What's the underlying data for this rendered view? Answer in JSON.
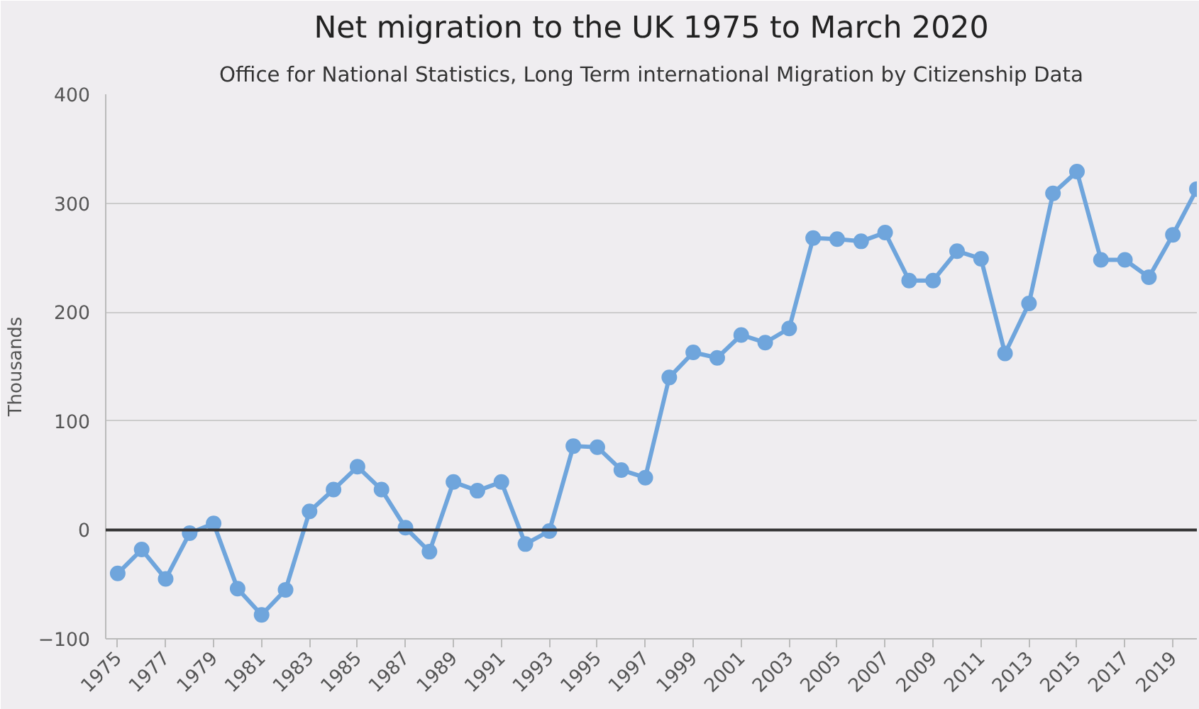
{
  "chart_data": {
    "type": "line",
    "title": "Net migration to the UK 1975 to March 2020",
    "subtitle": "Office for National Statistics, Long Term international Migration by Citizenship Data",
    "ylabel": "Thousands",
    "x": [
      1975,
      1976,
      1977,
      1978,
      1979,
      1980,
      1981,
      1982,
      1983,
      1984,
      1985,
      1986,
      1987,
      1988,
      1989,
      1990,
      1991,
      1992,
      1993,
      1994,
      1995,
      1996,
      1997,
      1998,
      1999,
      2000,
      2001,
      2002,
      2003,
      2004,
      2005,
      2006,
      2007,
      2008,
      2009,
      2010,
      2011,
      2012,
      2013,
      2014,
      2015,
      2016,
      2017,
      2018,
      2019,
      2020
    ],
    "series": [
      {
        "color": "#6fa5dc",
        "values": [
          -40,
          -18,
          -45,
          -3,
          6,
          -54,
          -78,
          -55,
          17,
          37,
          58,
          37,
          2,
          -20,
          44,
          36,
          44,
          -13,
          -1,
          77,
          76,
          55,
          48,
          140,
          163,
          158,
          179,
          172,
          185,
          268,
          267,
          265,
          273,
          229,
          229,
          256,
          249,
          162,
          208,
          309,
          329,
          248,
          248,
          232,
          271,
          313
        ]
      }
    ],
    "xlim": [
      1974.5,
      2020
    ],
    "xticks": [
      1975,
      1977,
      1979,
      1981,
      1983,
      1985,
      1987,
      1989,
      1991,
      1993,
      1995,
      1997,
      1999,
      2001,
      2003,
      2005,
      2007,
      2009,
      2011,
      2013,
      2015,
      2017,
      2019
    ],
    "ylim": [
      -100,
      400
    ],
    "yticks": [
      -100,
      0,
      100,
      200,
      300,
      400
    ],
    "ref_lines": [
      {
        "axis": "y",
        "value": 0,
        "color": "#333333"
      }
    ],
    "grid": "y",
    "marker": "circle",
    "line_style": "solid"
  }
}
